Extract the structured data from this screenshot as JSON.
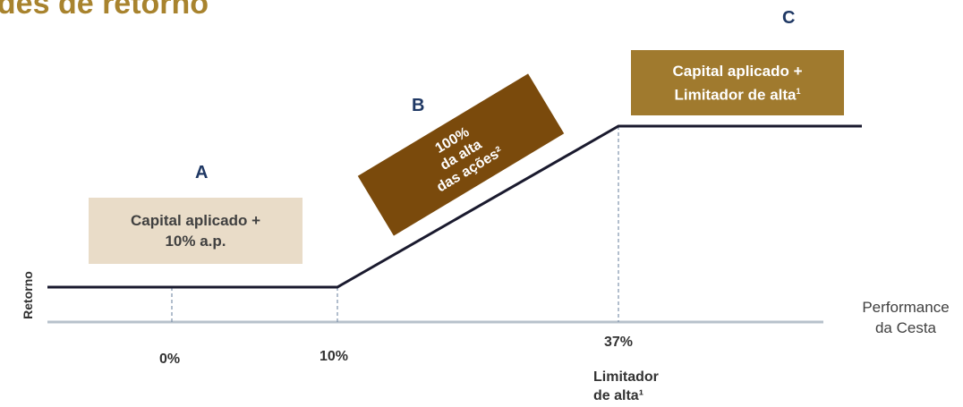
{
  "title": "ades de retorno",
  "colors": {
    "title": "#A8832E",
    "letters": "#1F3864",
    "box_a": "#E9DCC8",
    "box_b": "#7A4A0C",
    "box_c": "#A07A2E",
    "axis": "#B7C1CB",
    "payoff_line": "#1A1A2E"
  },
  "zones": {
    "a": {
      "letter": "A",
      "line1": "Capital aplicado +",
      "line2": "10% a.p."
    },
    "b": {
      "letter": "B",
      "line1": "100%",
      "line2": "da alta",
      "line3": "das ações²"
    },
    "c": {
      "letter": "C",
      "line1": "Capital aplicado +",
      "line2": "Limitador de alta",
      "line2_sup": "1"
    }
  },
  "x_axis": {
    "label_line1": "Performance",
    "label_line2": "da Cesta",
    "ticks": [
      "0%",
      "10%",
      "37%"
    ],
    "cap_label_line1": "Limitador",
    "cap_label_line2": "de alta¹"
  },
  "y_axis": {
    "label": "Retorno"
  }
}
